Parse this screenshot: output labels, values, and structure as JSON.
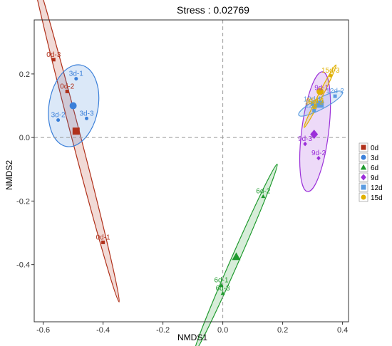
{
  "chart_data": {
    "type": "scatter",
    "title": "Stress : 0.02769",
    "xlabel": "NMDS1",
    "ylabel": "NMDS2",
    "xlim": [
      -0.63,
      0.42
    ],
    "ylim": [
      -0.58,
      0.37
    ],
    "x_ticks": [
      -0.6,
      -0.4,
      -0.2,
      0.0,
      0.2,
      0.4
    ],
    "x_tick_labels": [
      "-0.6",
      "-0.4",
      "-0.2",
      "0.0",
      "0.2",
      "0.4"
    ],
    "y_ticks": [
      -0.4,
      -0.2,
      0.0,
      0.2
    ],
    "y_tick_labels": [
      "-0.4",
      "-0.2",
      "0.0",
      "0.2"
    ],
    "reference_lines": {
      "x": 0,
      "y": 0
    },
    "legend_position": "right",
    "grid": false,
    "series": [
      {
        "name": "0d",
        "color": "#b0301a",
        "marker": "square",
        "points": [
          {
            "label": "0d-3",
            "x": -0.565,
            "y": 0.245
          },
          {
            "label": "0d-2",
            "x": -0.52,
            "y": 0.145
          },
          {
            "label": "0d-1",
            "x": -0.4,
            "y": -0.33
          }
        ],
        "centroid": {
          "x": -0.49,
          "y": 0.02
        }
      },
      {
        "name": "3d",
        "color": "#3a7fd9",
        "marker": "circle",
        "points": [
          {
            "label": "3d-1",
            "x": -0.49,
            "y": 0.185
          },
          {
            "label": "3d-2",
            "x": -0.55,
            "y": 0.055
          },
          {
            "label": "3d-3",
            "x": -0.455,
            "y": 0.06
          }
        ],
        "centroid": {
          "x": -0.5,
          "y": 0.1
        }
      },
      {
        "name": "6d",
        "color": "#1f9a2e",
        "marker": "triangle",
        "points": [
          {
            "label": "6d-2",
            "x": 0.135,
            "y": -0.185
          },
          {
            "label": "6d-1",
            "x": -0.005,
            "y": -0.465
          },
          {
            "label": "6d-3",
            "x": 0.0,
            "y": -0.49
          }
        ],
        "centroid": {
          "x": 0.045,
          "y": -0.375
        }
      },
      {
        "name": "9d",
        "color": "#9b30d9",
        "marker": "diamond",
        "points": [
          {
            "label": "9d-1",
            "x": 0.33,
            "y": 0.14
          },
          {
            "label": "9d-3",
            "x": 0.275,
            "y": -0.02
          },
          {
            "label": "9d-2",
            "x": 0.32,
            "y": -0.065
          }
        ],
        "centroid": {
          "x": 0.305,
          "y": 0.01
        }
      },
      {
        "name": "12d",
        "color": "#5b9be0",
        "marker": "square",
        "points": [
          {
            "label": "12d-1",
            "x": 0.3,
            "y": 0.105
          },
          {
            "label": "12d-2",
            "x": 0.375,
            "y": 0.13
          },
          {
            "label": "12d-3",
            "x": 0.305,
            "y": 0.085
          }
        ],
        "centroid": {
          "x": 0.325,
          "y": 0.105
        }
      },
      {
        "name": "15d",
        "color": "#e0b000",
        "marker": "circle",
        "points": [
          {
            "label": "15d-3",
            "x": 0.36,
            "y": 0.195
          },
          {
            "label": "15d-1",
            "x": 0.31,
            "y": 0.1
          },
          {
            "label": "15d-2",
            "x": 0.305,
            "y": 0.095
          }
        ],
        "centroid": {
          "x": 0.325,
          "y": 0.145
        }
      }
    ]
  }
}
